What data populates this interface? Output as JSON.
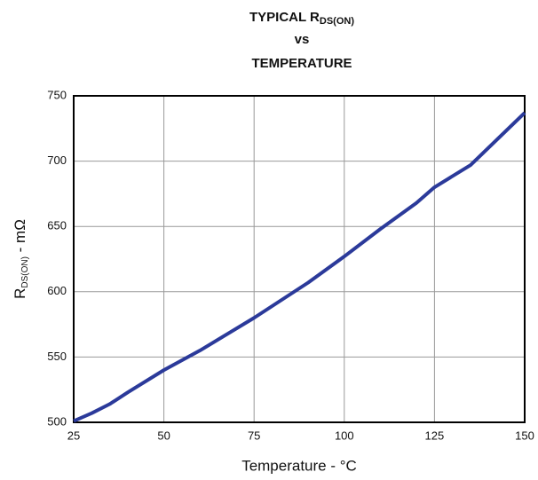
{
  "chart_data": {
    "type": "line",
    "title": "TYPICAL R",
    "title_subscript": "DS(ON)",
    "title_line2": "vs",
    "title_line3": "TEMPERATURE",
    "x_label": "Temperature - °C",
    "y_label": "R",
    "y_label_subscript": "DS(ON)",
    "y_label_rest": " - mΩ",
    "x": [
      25,
      30,
      35,
      40,
      50,
      60,
      75,
      90,
      100,
      110,
      120,
      125,
      135,
      150
    ],
    "series": [
      {
        "name": "RDS(ON)",
        "color": "#2b3a9a",
        "values": [
          501,
          507,
          514,
          523,
          540,
          555,
          580,
          607,
          627,
          648,
          668,
          680,
          697,
          737
        ]
      }
    ],
    "xlim": [
      25,
      150
    ],
    "xticks": [
      25,
      50,
      75,
      100,
      125,
      150
    ],
    "ylim": [
      500,
      750
    ],
    "yticks": [
      500,
      550,
      600,
      650,
      700,
      750
    ],
    "grid": true
  }
}
